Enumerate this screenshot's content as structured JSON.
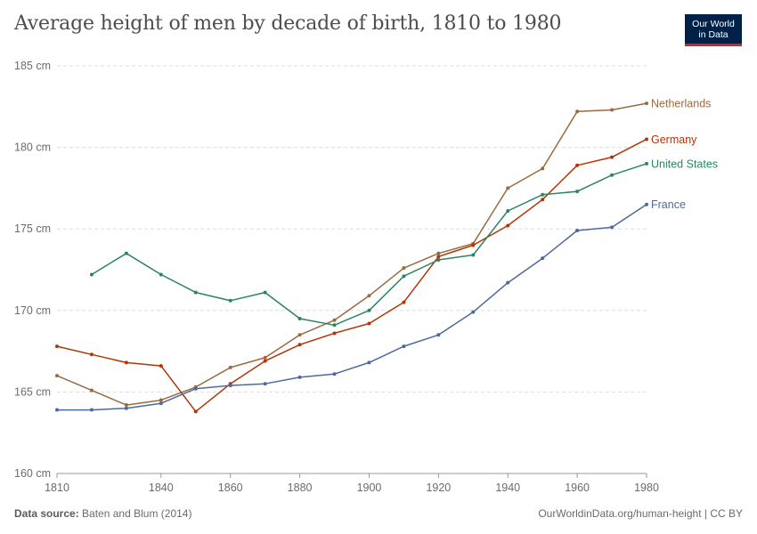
{
  "header": {
    "title": "Average height of men by decade of birth, 1810 to 1980",
    "logo_line1": "Our World",
    "logo_line2": "in Data"
  },
  "footer": {
    "source_label": "Data source:",
    "source_text": "Baten and Blum (2014)",
    "url": "OurWorldinData.org/human-height | CC BY"
  },
  "chart_data": {
    "type": "line",
    "title": "Average height of men by decade of birth, 1810 to 1980",
    "xlabel": "",
    "ylabel": "",
    "xlim": [
      1810,
      1980
    ],
    "ylim": [
      160,
      185
    ],
    "x_ticks": [
      1810,
      1840,
      1860,
      1880,
      1900,
      1920,
      1940,
      1960,
      1980
    ],
    "y_ticks": [
      160,
      165,
      170,
      175,
      180,
      185
    ],
    "y_unit": " cm",
    "grid": true,
    "series": [
      {
        "name": "Netherlands",
        "color": "#9a6a3f",
        "x": [
          1810,
          1820,
          1830,
          1840,
          1850,
          1860,
          1870,
          1880,
          1890,
          1900,
          1910,
          1920,
          1930,
          1940,
          1950,
          1960,
          1970,
          1980
        ],
        "values": [
          166.0,
          165.1,
          164.2,
          164.5,
          165.3,
          166.5,
          167.1,
          168.5,
          169.4,
          170.9,
          172.6,
          173.5,
          174.1,
          177.5,
          178.7,
          182.2,
          182.3,
          182.7
        ]
      },
      {
        "name": "Germany",
        "color": "#b13507",
        "x": [
          1810,
          1820,
          1830,
          1840,
          1850,
          1860,
          1870,
          1880,
          1890,
          1900,
          1910,
          1920,
          1930,
          1940,
          1950,
          1960,
          1970,
          1980
        ],
        "values": [
          167.8,
          167.3,
          166.8,
          166.6,
          163.8,
          165.5,
          166.9,
          167.9,
          168.6,
          169.2,
          170.5,
          173.3,
          174.0,
          175.2,
          176.8,
          178.9,
          179.4,
          180.5
        ]
      },
      {
        "name": "United States",
        "color": "#2c8465",
        "x": [
          1820,
          1830,
          1840,
          1850,
          1860,
          1870,
          1880,
          1890,
          1900,
          1910,
          1920,
          1930,
          1940,
          1950,
          1960,
          1970,
          1980
        ],
        "values": [
          172.2,
          173.5,
          172.2,
          171.1,
          170.6,
          171.1,
          169.5,
          169.1,
          170.0,
          172.1,
          173.1,
          173.4,
          176.1,
          177.1,
          177.3,
          178.3,
          179.0
        ]
      },
      {
        "name": "France",
        "color": "#4c6a9c",
        "x": [
          1810,
          1820,
          1830,
          1840,
          1850,
          1860,
          1870,
          1880,
          1890,
          1900,
          1910,
          1920,
          1930,
          1940,
          1950,
          1960,
          1970,
          1980
        ],
        "values": [
          163.9,
          163.9,
          164.0,
          164.3,
          165.2,
          165.4,
          165.5,
          165.9,
          166.1,
          166.8,
          167.8,
          168.5,
          169.9,
          171.7,
          173.2,
          174.9,
          175.1,
          176.5
        ]
      }
    ]
  }
}
